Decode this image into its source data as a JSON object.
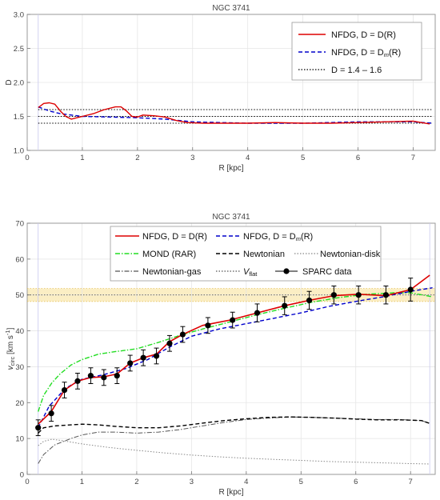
{
  "chart_data": [
    {
      "type": "line",
      "title": "NGC 3741",
      "xlabel": "R [kpc]",
      "ylabel": "D",
      "xlim": [
        0,
        7.4
      ],
      "ylim": [
        1.0,
        3.0
      ],
      "xticks": [
        "0",
        "1",
        "2",
        "3",
        "4",
        "5",
        "6",
        "7"
      ],
      "yticks": [
        "1.0",
        "1.5",
        "2.0",
        "2.5",
        "3.0"
      ],
      "grid": true,
      "legend_position": "top-right",
      "series": [
        {
          "name": "NFDG, D = D(R)",
          "color": "#dd0000",
          "style": "solid",
          "x": [
            0.2,
            0.3,
            0.4,
            0.5,
            0.6,
            0.7,
            0.8,
            0.9,
            1.0,
            1.2,
            1.4,
            1.6,
            1.7,
            1.8,
            1.9,
            2.0,
            2.1,
            2.3,
            2.5,
            2.7,
            2.9,
            3.2,
            3.6,
            4.0,
            4.5,
            5.0,
            5.5,
            6.0,
            6.5,
            7.0,
            7.3
          ],
          "y": [
            1.63,
            1.69,
            1.7,
            1.68,
            1.58,
            1.5,
            1.46,
            1.48,
            1.5,
            1.54,
            1.6,
            1.64,
            1.64,
            1.58,
            1.5,
            1.49,
            1.52,
            1.51,
            1.49,
            1.44,
            1.41,
            1.4,
            1.4,
            1.4,
            1.41,
            1.4,
            1.4,
            1.41,
            1.42,
            1.43,
            1.39
          ]
        },
        {
          "name": "NFDG, D = D_m(R)",
          "color": "#0000cc",
          "style": "dashed",
          "x": [
            0.2,
            0.4,
            0.6,
            0.8,
            1.0,
            1.5,
            2.0,
            2.5,
            3.0,
            3.5,
            4.0,
            4.5,
            5.0,
            5.5,
            6.0,
            6.5,
            7.0,
            7.35
          ],
          "y": [
            1.64,
            1.58,
            1.54,
            1.52,
            1.5,
            1.49,
            1.48,
            1.46,
            1.42,
            1.41,
            1.4,
            1.4,
            1.4,
            1.41,
            1.42,
            1.42,
            1.42,
            1.4
          ]
        },
        {
          "name": "D = 1.4 – 1.6",
          "color": "#000000",
          "style": "dotted",
          "constant_levels": [
            1.4,
            1.5,
            1.6
          ]
        }
      ]
    },
    {
      "type": "line",
      "title": "NGC 3741",
      "xlabel": "R [kpc]",
      "ylabel": "v_circ [km s^-1]",
      "xlim": [
        0,
        7.45
      ],
      "ylim": [
        0,
        70
      ],
      "xticks": [
        "0",
        "1",
        "2",
        "3",
        "4",
        "5",
        "6",
        "7"
      ],
      "yticks": [
        "0",
        "10",
        "20",
        "30",
        "40",
        "50",
        "60",
        "70"
      ],
      "grid": true,
      "legend_position": "top",
      "vflat_band": [
        48.2,
        51.8
      ],
      "series": [
        {
          "name": "NFDG, D = D(R)",
          "color": "#dd0000",
          "style": "solid",
          "x": [
            0.2,
            0.44,
            0.68,
            0.92,
            1.16,
            1.4,
            1.64,
            1.88,
            2.12,
            2.36,
            2.6,
            2.84,
            3.2,
            3.7,
            4.2,
            4.7,
            5.15,
            5.6,
            6.05,
            6.55,
            7.0,
            7.35
          ],
          "y": [
            14.0,
            17.5,
            23.5,
            26.0,
            27.0,
            27.2,
            28.0,
            31.0,
            32.5,
            33.5,
            37.0,
            39.0,
            41.5,
            43.0,
            45.0,
            47.0,
            48.5,
            49.8,
            50.2,
            49.8,
            51.5,
            55.5
          ]
        },
        {
          "name": "NFDG, D = D_m(R)",
          "color": "#0000cc",
          "style": "dashed",
          "x": [
            0.2,
            0.4,
            0.7,
            1.0,
            1.4,
            1.8,
            2.2,
            2.6,
            3.0,
            3.5,
            4.0,
            4.5,
            5.0,
            5.5,
            6.0,
            6.5,
            7.0,
            7.4
          ],
          "y": [
            13.0,
            19.0,
            24.0,
            26.5,
            27.8,
            29.5,
            32.0,
            35.5,
            38.5,
            40.5,
            42.0,
            43.5,
            45.0,
            46.8,
            48.2,
            49.5,
            51.0,
            52.0
          ]
        },
        {
          "name": "MOND (RAR)",
          "color": "#22dd22",
          "style": "dashdot",
          "x": [
            0.2,
            0.3,
            0.45,
            0.6,
            0.8,
            1.0,
            1.3,
            1.6,
            2.0,
            2.4,
            2.8,
            3.2,
            3.7,
            4.2,
            4.7,
            5.2,
            5.7,
            6.2,
            6.7,
            7.0,
            7.4
          ],
          "y": [
            17.5,
            22.0,
            25.5,
            28.0,
            30.5,
            32.0,
            33.5,
            34.2,
            35.0,
            36.8,
            38.8,
            40.5,
            42.5,
            44.5,
            46.3,
            48.0,
            49.3,
            50.2,
            50.6,
            50.6,
            49.5
          ]
        },
        {
          "name": "Newtonian",
          "color": "#000000",
          "style": "dashed",
          "x": [
            0.2,
            0.3,
            0.5,
            0.8,
            1.0,
            1.3,
            1.6,
            2.0,
            2.4,
            2.8,
            3.2,
            3.6,
            4.0,
            4.4,
            4.8,
            5.2,
            5.6,
            6.0,
            6.4,
            6.8,
            7.2,
            7.35
          ],
          "y": [
            11.5,
            13.0,
            13.5,
            13.8,
            14.0,
            13.8,
            13.4,
            13.0,
            13.0,
            13.5,
            14.3,
            15.0,
            15.5,
            15.9,
            16.0,
            15.9,
            15.7,
            15.4,
            15.2,
            15.2,
            15.0,
            14.2
          ]
        },
        {
          "name": "Newtonian-disk",
          "color": "#888888",
          "style": "dotted",
          "x": [
            0.2,
            0.3,
            0.45,
            0.6,
            0.8,
            1.0,
            1.5,
            2.0,
            2.5,
            3.0,
            3.5,
            4.0,
            4.5,
            5.0,
            5.5,
            6.0,
            6.5,
            7.0,
            7.35
          ],
          "y": [
            8.0,
            9.2,
            9.8,
            9.5,
            9.0,
            8.5,
            7.5,
            6.7,
            6.0,
            5.4,
            4.9,
            4.5,
            4.2,
            3.9,
            3.6,
            3.4,
            3.2,
            3.0,
            2.9
          ]
        },
        {
          "name": "Newtonian-gas",
          "color": "#555555",
          "style": "dashdot",
          "x": [
            0.2,
            0.3,
            0.5,
            0.8,
            1.0,
            1.3,
            1.6,
            2.0,
            2.4,
            2.8,
            3.2,
            3.6,
            4.0,
            4.4,
            4.8,
            5.2,
            5.6,
            6.0,
            6.4,
            6.8,
            7.2,
            7.35
          ],
          "y": [
            3.0,
            5.5,
            8.2,
            10.0,
            11.0,
            11.8,
            11.8,
            11.5,
            11.8,
            12.5,
            13.5,
            14.5,
            15.3,
            15.7,
            16.0,
            15.9,
            15.7,
            15.5,
            15.3,
            15.3,
            15.0,
            14.2
          ]
        },
        {
          "name": "V_flat",
          "color": "#555555",
          "style": "dotted",
          "constant_value": 50.0
        }
      ],
      "points": {
        "name": "SPARC data",
        "x": [
          0.2,
          0.44,
          0.68,
          0.92,
          1.16,
          1.4,
          1.64,
          1.88,
          2.12,
          2.36,
          2.6,
          2.84,
          3.3,
          3.75,
          4.2,
          4.7,
          5.15,
          5.6,
          6.05,
          6.55,
          7.0
        ],
        "y": [
          13.0,
          17.0,
          23.5,
          26.0,
          27.5,
          27.0,
          27.5,
          31.0,
          32.5,
          33.0,
          36.5,
          39.0,
          41.5,
          43.0,
          45.0,
          47.0,
          48.5,
          50.0,
          50.0,
          50.0,
          51.5
        ],
        "err": [
          2.2,
          2.2,
          2.2,
          2.2,
          2.2,
          2.2,
          2.2,
          2.2,
          2.2,
          2.2,
          2.2,
          2.2,
          2.2,
          2.2,
          2.5,
          2.5,
          2.5,
          2.5,
          2.5,
          2.5,
          3.2
        ]
      }
    }
  ]
}
